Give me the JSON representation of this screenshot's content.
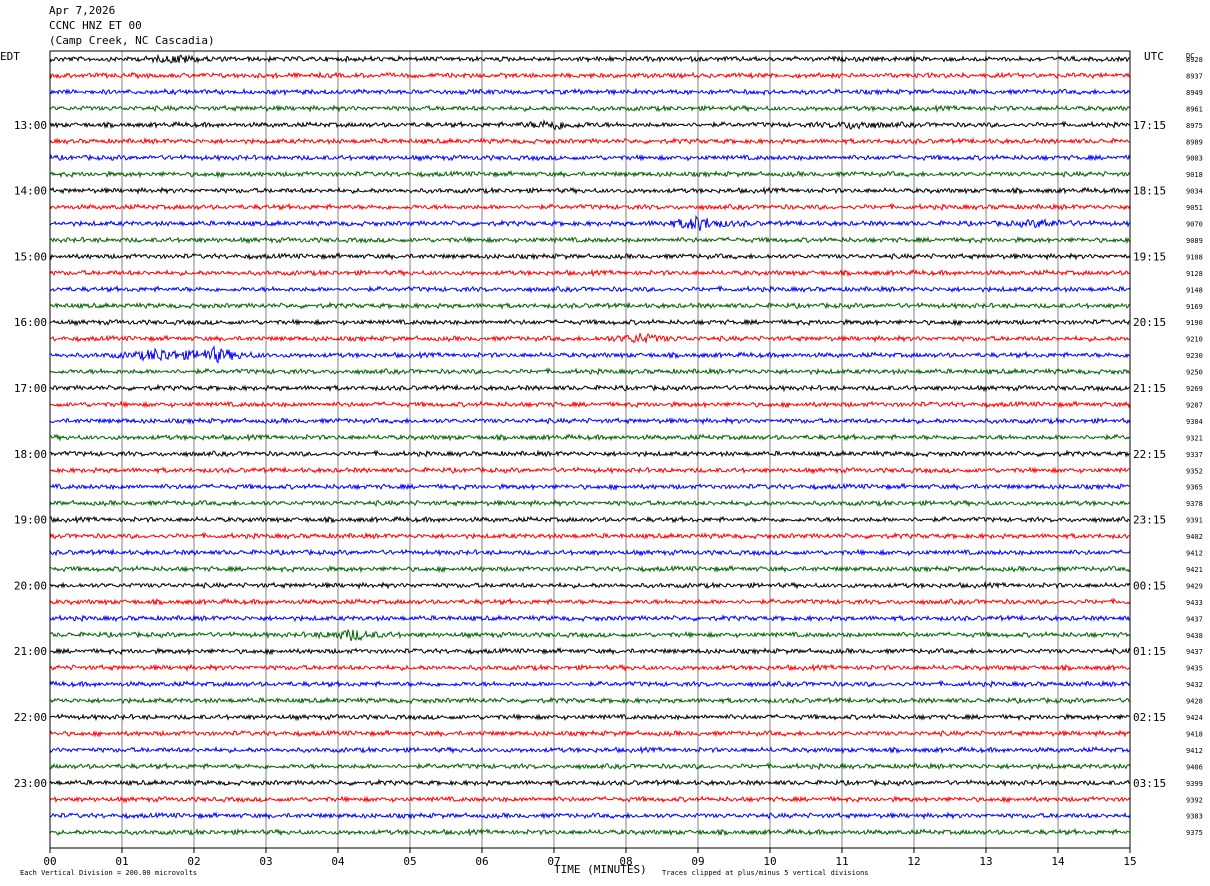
{
  "header": {
    "date": "Apr 7,2026",
    "station": "CCNC HNZ ET 00",
    "location": "(Camp Creek, NC Cascadia)"
  },
  "left_axis_title": "EDT",
  "right_axis_title": "UTC",
  "dc_title": "DC",
  "colors": {
    "trace_cycle": [
      "#000000",
      "#ff0000",
      "#0000ff",
      "#006400"
    ],
    "grid": "#808080",
    "frame": "#000000"
  },
  "chart_data": {
    "type": "line",
    "xlabel": "TIME (MINUTES)",
    "xlim": [
      0,
      15
    ],
    "x_ticks": [
      "00",
      "01",
      "02",
      "03",
      "04",
      "05",
      "06",
      "07",
      "08",
      "09",
      "10",
      "11",
      "12",
      "13",
      "14",
      "15"
    ],
    "rows_per_hour": 4,
    "row_count": 48,
    "left_hour_labels": [
      "13:00",
      "14:00",
      "15:00",
      "16:00",
      "17:00",
      "18:00",
      "19:00",
      "20:00",
      "21:00",
      "22:00",
      "23:00"
    ],
    "right_hour_labels": [
      "17:15",
      "18:15",
      "19:15",
      "20:15",
      "21:15",
      "22:15",
      "23:15",
      "00:15",
      "01:15",
      "02:15",
      "03:15"
    ],
    "dc_offsets": [
      "8928",
      "8937",
      "8949",
      "8961",
      "8975",
      "8989",
      "9003",
      "9018",
      "9034",
      "9051",
      "9070",
      "9089",
      "9108",
      "9128",
      "9148",
      "9169",
      "9190",
      "9210",
      "9230",
      "9250",
      "9269",
      "9287",
      "9304",
      "9321",
      "9337",
      "9352",
      "9365",
      "9378",
      "9391",
      "9402",
      "9412",
      "9421",
      "9429",
      "9433",
      "9437",
      "9438",
      "9437",
      "9435",
      "9432",
      "9428",
      "9424",
      "9418",
      "9412",
      "9406",
      "9399",
      "9392",
      "9383",
      "9375"
    ],
    "events": [
      {
        "row": 0,
        "minute": 1.8,
        "amplitude": 0.4
      },
      {
        "row": 4,
        "minute": 7.0,
        "amplitude": 0.5
      },
      {
        "row": 4,
        "minute": 11.2,
        "amplitude": 0.4
      },
      {
        "row": 10,
        "minute": 9.0,
        "amplitude": 0.8
      },
      {
        "row": 10,
        "minute": 13.8,
        "amplitude": 0.4
      },
      {
        "row": 17,
        "minute": 8.2,
        "amplitude": 0.5
      },
      {
        "row": 18,
        "minute": 1.5,
        "amplitude": 0.7
      },
      {
        "row": 18,
        "minute": 2.3,
        "amplitude": 0.8
      },
      {
        "row": 35,
        "minute": 4.2,
        "amplitude": 0.6
      }
    ],
    "footer": {
      "scale_note": "Each Vertical Division =  200.00 microvolts",
      "clip_note": "Traces clipped at plus/minus 5 vertical divisions"
    }
  }
}
